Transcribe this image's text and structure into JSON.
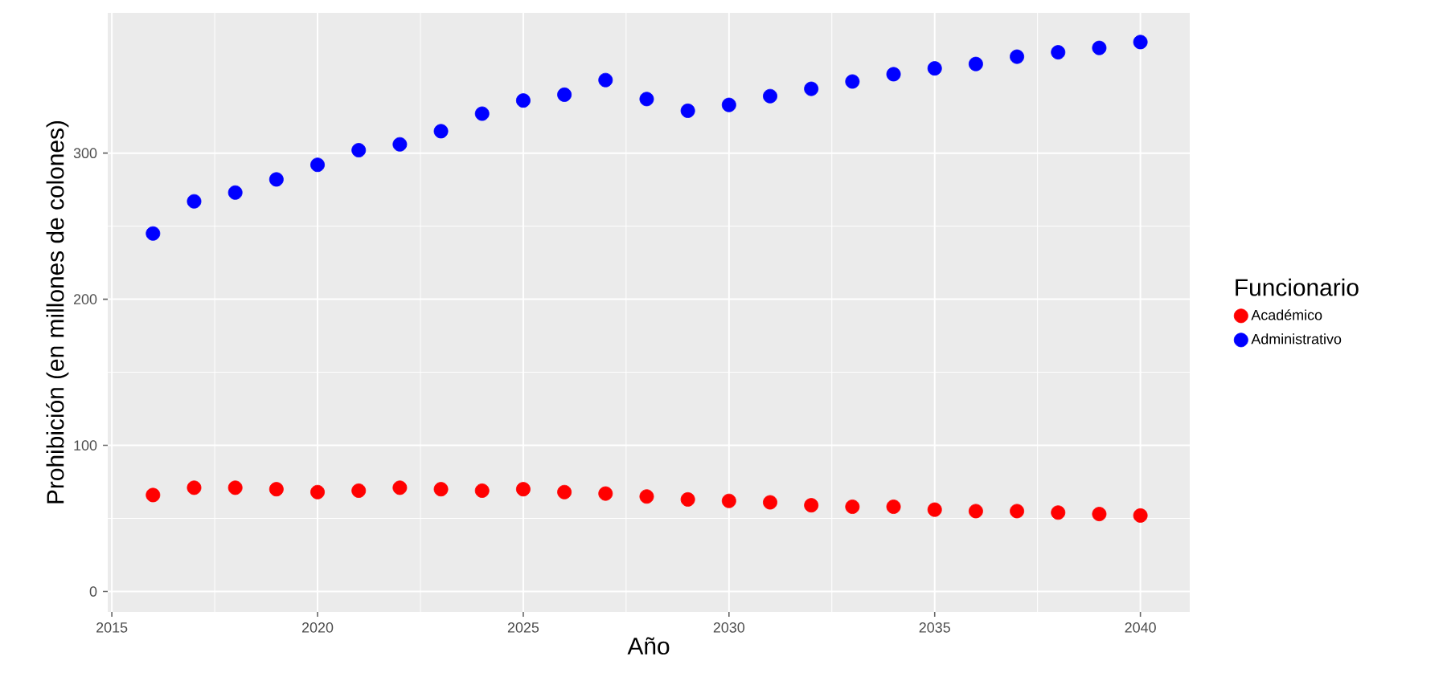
{
  "chart_data": {
    "type": "scatter",
    "xlabel": "Año",
    "ylabel": "Prohibición (en millones de colones)",
    "legend_title": "Funcionario",
    "legend": "right",
    "grid": true,
    "x": [
      2016,
      2017,
      2018,
      2019,
      2020,
      2021,
      2022,
      2023,
      2024,
      2025,
      2026,
      2027,
      2028,
      2029,
      2030,
      2031,
      2032,
      2033,
      2034,
      2035,
      2036,
      2037,
      2038,
      2039,
      2040
    ],
    "xlim": [
      2014.9,
      2041.2
    ],
    "xticks": [
      2015,
      2020,
      2025,
      2030,
      2035,
      2040
    ],
    "ylim": [
      -14,
      396
    ],
    "yticks": [
      0,
      100,
      200,
      300
    ],
    "series": [
      {
        "name": "Académico",
        "color": "#ff0000",
        "values": [
          66,
          71,
          71,
          70,
          68,
          69,
          71,
          70,
          69,
          70,
          68,
          67,
          65,
          63,
          62,
          61,
          59,
          58,
          58,
          56,
          55,
          55,
          54,
          53,
          52
        ]
      },
      {
        "name": "Administrativo",
        "color": "#0000ff",
        "values": [
          245,
          267,
          273,
          282,
          292,
          302,
          306,
          315,
          327,
          336,
          340,
          350,
          337,
          329,
          333,
          339,
          344,
          349,
          354,
          358,
          361,
          366,
          369,
          372,
          376
        ]
      }
    ]
  }
}
